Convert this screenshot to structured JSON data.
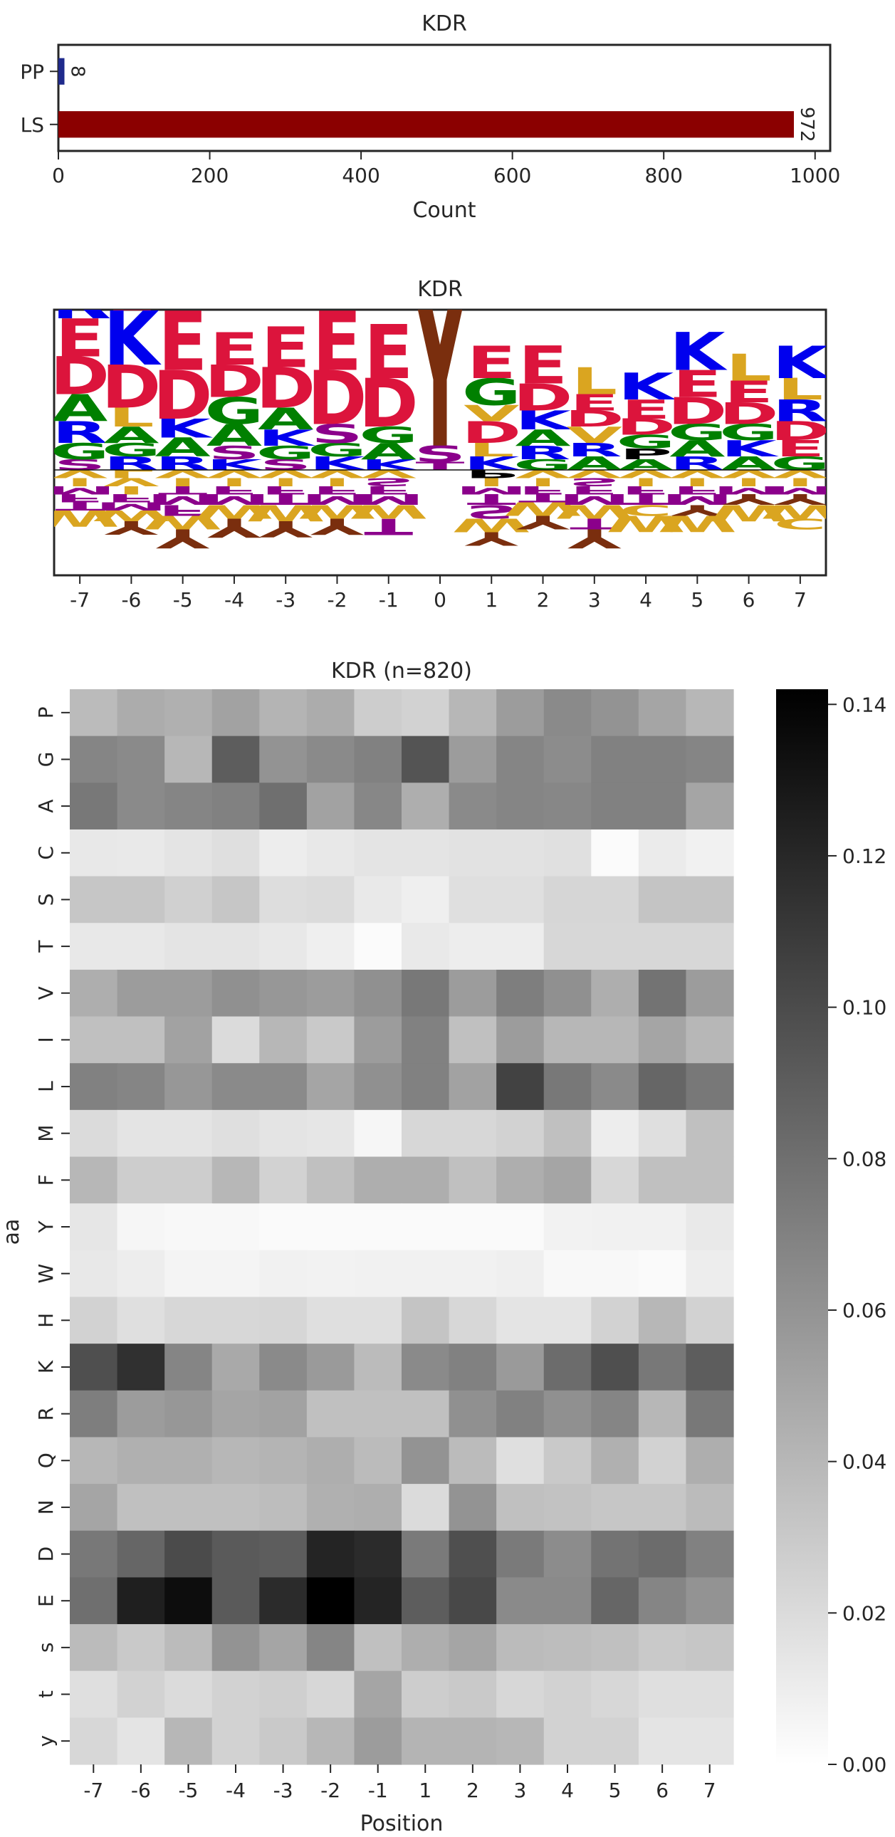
{
  "chart_data": [
    {
      "type": "bar",
      "orientation": "horizontal",
      "title": "KDR",
      "xlabel": "Count",
      "ylabel": "",
      "categories": [
        "PP",
        "LS"
      ],
      "values": [
        8,
        972
      ],
      "value_labels": [
        "8",
        "972"
      ],
      "colors": [
        "#1f2a8c",
        "#8b0000"
      ],
      "xlim": [
        0,
        1020
      ],
      "xticks": [
        0,
        200,
        400,
        600,
        800,
        1000
      ],
      "xtick_labels": [
        "0",
        "200",
        "400",
        "600",
        "800",
        "1000"
      ],
      "grid": false
    },
    {
      "type": "sequence_logo",
      "title": "KDR",
      "xlabel": "",
      "ylabel": "",
      "positions": [
        "-7",
        "-6",
        "-5",
        "-4",
        "-3",
        "-2",
        "-1",
        "0",
        "1",
        "2",
        "3",
        "4",
        "5",
        "6",
        "7"
      ],
      "color_scheme": {
        "acidic": "#dc143c",
        "basic": "#0000ee",
        "polar_green": "#008000",
        "hydrophobic": "#daa520",
        "polar_purple": "#8b008b",
        "phospho": "#7a2e0e",
        "proline": "#000000"
      },
      "upper_stacks": [
        [
          [
            "K",
            0.18
          ],
          [
            "E",
            0.14
          ],
          [
            "D",
            0.14
          ],
          [
            "A",
            0.1
          ],
          [
            "R",
            0.08
          ],
          [
            "G",
            0.06
          ],
          [
            "S",
            0.04
          ]
        ],
        [
          [
            "E",
            0.26
          ],
          [
            "K",
            0.2
          ],
          [
            "D",
            0.16
          ],
          [
            "L",
            0.07
          ],
          [
            "A",
            0.06
          ],
          [
            "G",
            0.05
          ],
          [
            "R",
            0.05
          ]
        ],
        [
          [
            "E",
            0.22
          ],
          [
            "D",
            0.18
          ],
          [
            "K",
            0.07
          ],
          [
            "A",
            0.07
          ],
          [
            "R",
            0.05
          ]
        ],
        [
          [
            "E",
            0.12
          ],
          [
            "D",
            0.12
          ],
          [
            "G",
            0.1
          ],
          [
            "A",
            0.08
          ],
          [
            "S",
            0.05
          ],
          [
            "K",
            0.04
          ]
        ],
        [
          [
            "E",
            0.15
          ],
          [
            "D",
            0.15
          ],
          [
            "A",
            0.08
          ],
          [
            "K",
            0.06
          ],
          [
            "G",
            0.05
          ],
          [
            "S",
            0.04
          ]
        ],
        [
          [
            "E",
            0.22
          ],
          [
            "D",
            0.2
          ],
          [
            "S",
            0.07
          ],
          [
            "G",
            0.05
          ],
          [
            "K",
            0.05
          ]
        ],
        [
          [
            "E",
            0.2
          ],
          [
            "D",
            0.18
          ],
          [
            "G",
            0.06
          ],
          [
            "A",
            0.06
          ],
          [
            "K",
            0.04
          ]
        ],
        [
          [
            "Y",
            0.58
          ],
          [
            "S",
            0.06
          ],
          [
            "T",
            0.03
          ]
        ],
        [
          [
            "E",
            0.12
          ],
          [
            "G",
            0.1
          ],
          [
            "V",
            0.06
          ],
          [
            "D",
            0.08
          ],
          [
            "L",
            0.05
          ],
          [
            "K",
            0.05
          ]
        ],
        [
          [
            "E",
            0.14
          ],
          [
            "D",
            0.1
          ],
          [
            "K",
            0.07
          ],
          [
            "A",
            0.06
          ],
          [
            "R",
            0.05
          ],
          [
            "G",
            0.04
          ]
        ],
        [
          [
            "L",
            0.1
          ],
          [
            "E",
            0.06
          ],
          [
            "D",
            0.06
          ],
          [
            "V",
            0.06
          ],
          [
            "R",
            0.05
          ],
          [
            "A",
            0.05
          ]
        ],
        [
          [
            "K",
            0.1
          ],
          [
            "E",
            0.07
          ],
          [
            "D",
            0.06
          ],
          [
            "G",
            0.05
          ],
          [
            "P",
            0.04
          ],
          [
            "A",
            0.04
          ]
        ],
        [
          [
            "K",
            0.14
          ],
          [
            "E",
            0.1
          ],
          [
            "D",
            0.1
          ],
          [
            "G",
            0.06
          ],
          [
            "A",
            0.06
          ],
          [
            "R",
            0.05
          ]
        ],
        [
          [
            "L",
            0.1
          ],
          [
            "E",
            0.08
          ],
          [
            "D",
            0.08
          ],
          [
            "G",
            0.06
          ],
          [
            "K",
            0.06
          ],
          [
            "A",
            0.05
          ]
        ],
        [
          [
            "K",
            0.12
          ],
          [
            "L",
            0.08
          ],
          [
            "R",
            0.08
          ],
          [
            "D",
            0.07
          ],
          [
            "E",
            0.06
          ],
          [
            "G",
            0.05
          ]
        ]
      ],
      "lower_stacks": [
        [
          [
            "V",
            0.03
          ],
          [
            "I",
            0.03
          ],
          [
            "M",
            0.03
          ],
          [
            "F",
            0.03
          ],
          [
            "T",
            0.03
          ],
          [
            "W",
            0.06
          ]
        ],
        [
          [
            "L",
            0.03
          ],
          [
            "V",
            0.03
          ],
          [
            "I",
            0.03
          ],
          [
            "F",
            0.03
          ],
          [
            "M",
            0.03
          ],
          [
            "W",
            0.04
          ],
          [
            "Y",
            0.05
          ]
        ],
        [
          [
            "V",
            0.03
          ],
          [
            "I",
            0.03
          ],
          [
            "T",
            0.03
          ],
          [
            "M",
            0.04
          ],
          [
            "F",
            0.04
          ],
          [
            "W",
            0.05
          ],
          [
            "Y",
            0.07
          ]
        ],
        [
          [
            "V",
            0.03
          ],
          [
            "I",
            0.03
          ],
          [
            "F",
            0.03
          ],
          [
            "M",
            0.04
          ],
          [
            "W",
            0.05
          ],
          [
            "Y",
            0.07
          ]
        ],
        [
          [
            "V",
            0.03
          ],
          [
            "I",
            0.03
          ],
          [
            "F",
            0.03
          ],
          [
            "T",
            0.04
          ],
          [
            "W",
            0.06
          ],
          [
            "Y",
            0.06
          ]
        ],
        [
          [
            "V",
            0.03
          ],
          [
            "I",
            0.03
          ],
          [
            "F",
            0.03
          ],
          [
            "M",
            0.04
          ],
          [
            "W",
            0.05
          ],
          [
            "Y",
            0.06
          ]
        ],
        [
          [
            "V",
            0.03
          ],
          [
            "S",
            0.03
          ],
          [
            "F",
            0.03
          ],
          [
            "M",
            0.04
          ],
          [
            "W",
            0.05
          ],
          [
            "T",
            0.06
          ]
        ],
        [],
        [
          [
            "P",
            0.03
          ],
          [
            "I",
            0.03
          ],
          [
            "M",
            0.03
          ],
          [
            "T",
            0.04
          ],
          [
            "S",
            0.05
          ],
          [
            "W",
            0.05
          ],
          [
            "Y",
            0.05
          ]
        ],
        [
          [
            "V",
            0.03
          ],
          [
            "I",
            0.03
          ],
          [
            "F",
            0.03
          ],
          [
            "T",
            0.03
          ],
          [
            "W",
            0.05
          ],
          [
            "Y",
            0.05
          ]
        ],
        [
          [
            "V",
            0.03
          ],
          [
            "S",
            0.03
          ],
          [
            "F",
            0.03
          ],
          [
            "M",
            0.04
          ],
          [
            "W",
            0.05
          ],
          [
            "T",
            0.04
          ],
          [
            "Y",
            0.07
          ]
        ],
        [
          [
            "V",
            0.03
          ],
          [
            "I",
            0.03
          ],
          [
            "F",
            0.03
          ],
          [
            "T",
            0.04
          ],
          [
            "C",
            0.04
          ],
          [
            "W",
            0.06
          ]
        ],
        [
          [
            "V",
            0.03
          ],
          [
            "I",
            0.03
          ],
          [
            "F",
            0.03
          ],
          [
            "M",
            0.04
          ],
          [
            "Y",
            0.04
          ],
          [
            "W",
            0.06
          ]
        ],
        [
          [
            "V",
            0.03
          ],
          [
            "I",
            0.03
          ],
          [
            "M",
            0.03
          ],
          [
            "Y",
            0.04
          ],
          [
            "W",
            0.06
          ]
        ],
        [
          [
            "V",
            0.03
          ],
          [
            "I",
            0.03
          ],
          [
            "M",
            0.03
          ],
          [
            "Y",
            0.04
          ],
          [
            "W",
            0.05
          ],
          [
            "C",
            0.04
          ]
        ]
      ]
    },
    {
      "type": "heatmap",
      "title": "KDR (n=820)",
      "xlabel": "Position",
      "ylabel": "aa",
      "x": [
        "-7",
        "-6",
        "-5",
        "-4",
        "-3",
        "-2",
        "-1",
        "1",
        "2",
        "3",
        "4",
        "5",
        "6",
        "7"
      ],
      "y": [
        "P",
        "G",
        "A",
        "C",
        "S",
        "T",
        "V",
        "I",
        "L",
        "M",
        "F",
        "Y",
        "W",
        "H",
        "K",
        "R",
        "Q",
        "N",
        "D",
        "E",
        "s",
        "t",
        "y"
      ],
      "colormap": "greys",
      "vmin": 0,
      "vmax": 0.142,
      "colorbar_ticks": [
        0,
        0.02,
        0.04,
        0.06,
        0.08,
        0.1,
        0.12,
        0.14
      ],
      "colorbar_tick_labels": [
        "0.00",
        "0.02",
        "0.04",
        "0.06",
        "0.08",
        "0.10",
        "0.12",
        "0.14"
      ],
      "values": [
        [
          0.038,
          0.046,
          0.044,
          0.052,
          0.042,
          0.046,
          0.028,
          0.025,
          0.04,
          0.055,
          0.065,
          0.06,
          0.05,
          0.04
        ],
        [
          0.068,
          0.065,
          0.04,
          0.09,
          0.06,
          0.065,
          0.07,
          0.095,
          0.055,
          0.068,
          0.064,
          0.07,
          0.07,
          0.068
        ],
        [
          0.075,
          0.065,
          0.068,
          0.07,
          0.08,
          0.052,
          0.067,
          0.045,
          0.065,
          0.068,
          0.067,
          0.07,
          0.07,
          0.05
        ],
        [
          0.013,
          0.012,
          0.015,
          0.018,
          0.01,
          0.013,
          0.015,
          0.015,
          0.016,
          0.016,
          0.017,
          0.002,
          0.011,
          0.008
        ],
        [
          0.032,
          0.032,
          0.026,
          0.032,
          0.019,
          0.02,
          0.012,
          0.009,
          0.018,
          0.018,
          0.023,
          0.023,
          0.033,
          0.033
        ],
        [
          0.013,
          0.013,
          0.015,
          0.015,
          0.013,
          0.009,
          0.002,
          0.012,
          0.01,
          0.01,
          0.022,
          0.022,
          0.022,
          0.022
        ],
        [
          0.045,
          0.055,
          0.055,
          0.062,
          0.058,
          0.055,
          0.062,
          0.075,
          0.055,
          0.072,
          0.062,
          0.045,
          0.078,
          0.055
        ],
        [
          0.035,
          0.035,
          0.052,
          0.02,
          0.04,
          0.03,
          0.055,
          0.07,
          0.035,
          0.055,
          0.04,
          0.04,
          0.05,
          0.04
        ],
        [
          0.07,
          0.068,
          0.058,
          0.065,
          0.065,
          0.05,
          0.062,
          0.07,
          0.052,
          0.105,
          0.075,
          0.065,
          0.085,
          0.075
        ],
        [
          0.02,
          0.015,
          0.015,
          0.018,
          0.015,
          0.014,
          0.005,
          0.022,
          0.022,
          0.025,
          0.035,
          0.01,
          0.018,
          0.035
        ],
        [
          0.04,
          0.028,
          0.028,
          0.04,
          0.025,
          0.035,
          0.045,
          0.045,
          0.035,
          0.045,
          0.05,
          0.022,
          0.035,
          0.035
        ],
        [
          0.014,
          0.005,
          0.004,
          0.004,
          0.003,
          0.003,
          0.003,
          0.003,
          0.003,
          0.003,
          0.007,
          0.008,
          0.008,
          0.012
        ],
        [
          0.013,
          0.01,
          0.006,
          0.006,
          0.008,
          0.007,
          0.008,
          0.008,
          0.008,
          0.009,
          0.004,
          0.004,
          0.003,
          0.01
        ],
        [
          0.025,
          0.018,
          0.022,
          0.022,
          0.023,
          0.018,
          0.018,
          0.033,
          0.022,
          0.015,
          0.015,
          0.025,
          0.04,
          0.025
        ],
        [
          0.098,
          0.115,
          0.068,
          0.048,
          0.065,
          0.056,
          0.038,
          0.065,
          0.07,
          0.056,
          0.082,
          0.098,
          0.075,
          0.09
        ],
        [
          0.072,
          0.055,
          0.058,
          0.05,
          0.052,
          0.035,
          0.035,
          0.035,
          0.062,
          0.07,
          0.062,
          0.068,
          0.04,
          0.075
        ],
        [
          0.04,
          0.044,
          0.044,
          0.04,
          0.042,
          0.045,
          0.038,
          0.06,
          0.038,
          0.018,
          0.03,
          0.044,
          0.025,
          0.045
        ],
        [
          0.05,
          0.035,
          0.035,
          0.035,
          0.037,
          0.044,
          0.045,
          0.02,
          0.06,
          0.035,
          0.034,
          0.032,
          0.032,
          0.038
        ],
        [
          0.075,
          0.085,
          0.1,
          0.092,
          0.09,
          0.122,
          0.118,
          0.074,
          0.098,
          0.074,
          0.064,
          0.078,
          0.082,
          0.07
        ],
        [
          0.08,
          0.125,
          0.135,
          0.092,
          0.118,
          0.142,
          0.122,
          0.09,
          0.102,
          0.065,
          0.065,
          0.085,
          0.068,
          0.06
        ],
        [
          0.038,
          0.03,
          0.038,
          0.06,
          0.05,
          0.068,
          0.035,
          0.045,
          0.05,
          0.038,
          0.037,
          0.035,
          0.03,
          0.032
        ],
        [
          0.018,
          0.025,
          0.02,
          0.025,
          0.027,
          0.022,
          0.05,
          0.028,
          0.03,
          0.022,
          0.025,
          0.022,
          0.018,
          0.018
        ],
        [
          0.022,
          0.015,
          0.04,
          0.025,
          0.03,
          0.04,
          0.055,
          0.042,
          0.042,
          0.04,
          0.025,
          0.025,
          0.015,
          0.015
        ]
      ]
    }
  ]
}
